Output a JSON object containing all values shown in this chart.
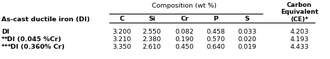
{
  "title_left": "As-cast ductile iron (DI)",
  "header_group": "Composition (wt %)",
  "header_right": "Carbon\nEquivalent\n(CE)*",
  "col_headers": [
    "C",
    "Si",
    "Cr",
    "P",
    "S",
    "Carbon\nEquivalent\n(CE)*"
  ],
  "col_headers_short": [
    "C",
    "Si",
    "Cr",
    "P",
    "S"
  ],
  "rows": [
    {
      "label": "DI",
      "stars": "",
      "values": [
        "3.200",
        "2.550",
        "0.082",
        "0.458",
        "0.033",
        "4.203"
      ]
    },
    {
      "label": "DI (0.045 %Cr)",
      "stars": "**",
      "values": [
        "3.210",
        "2.380",
        "0.190",
        "0.570",
        "0.020",
        "4.193"
      ]
    },
    {
      "label": "DI (0.360% Cr)",
      "stars": "***",
      "values": [
        "3.350",
        "2.610",
        "0.450",
        "0.640",
        "0.019",
        "4.433"
      ]
    }
  ],
  "bg_color": "#ffffff",
  "text_color": "#000000",
  "font_size": 6.8,
  "bold_font_size": 6.8
}
